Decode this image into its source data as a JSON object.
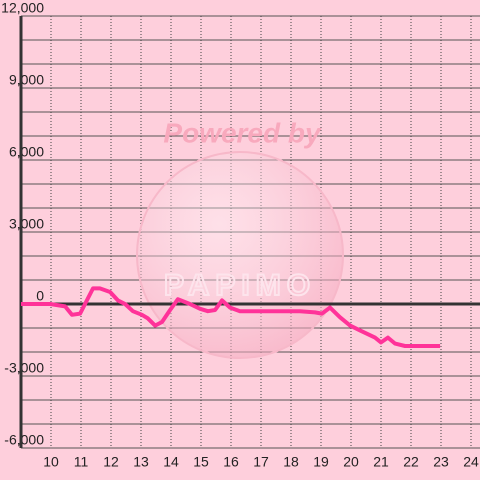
{
  "chart_data": {
    "type": "line",
    "watermark": [
      "Powered by",
      "PAPIMO"
    ],
    "x": [
      9,
      9.97,
      10.47,
      10.7,
      10.97,
      11.4,
      11.63,
      11.97,
      12.23,
      12.47,
      12.73,
      13.03,
      13.23,
      13.47,
      13.7,
      13.97,
      14.23,
      14.63,
      14.97,
      15.23,
      15.47,
      15.7,
      15.97,
      16.3,
      18.3,
      18.8,
      19.03,
      19.3,
      19.63,
      19.97,
      20.3,
      20.8,
      21.0,
      21.23,
      21.47,
      21.8,
      22.97
    ],
    "series": [
      {
        "color": "#ff3399",
        "values": [
          0,
          0,
          -100,
          -450,
          -400,
          650,
          650,
          500,
          150,
          0,
          -300,
          -450,
          -600,
          -900,
          -750,
          -250,
          200,
          0,
          -200,
          -300,
          -250,
          150,
          -150,
          -300,
          -300,
          -350,
          -400,
          -150,
          -550,
          -900,
          -1100,
          -1400,
          -1600,
          -1400,
          -1650,
          -1750,
          -1750
        ]
      }
    ],
    "xlim": [
      9,
      24.3
    ],
    "xticks": [
      10,
      11,
      12,
      13,
      14,
      15,
      16,
      17,
      18,
      19,
      20,
      21,
      22,
      23,
      24
    ],
    "ylim": [
      -6000,
      12000
    ],
    "yticks": [
      {
        "value": -6000,
        "label": "-6,000"
      },
      {
        "value": -3000,
        "label": "-3,000"
      },
      0,
      {
        "value": 3000,
        "label": "3,000"
      },
      {
        "value": 6000,
        "label": "6,000"
      },
      {
        "value": 9000,
        "label": "9,000"
      },
      {
        "value": 12000,
        "label": "12,000"
      }
    ],
    "y_minor_ticks": [
      -5000,
      -4000,
      -2000,
      -1000,
      1000,
      2000,
      4000,
      5000,
      7000,
      8000,
      10000,
      11000
    ],
    "grid": true
  }
}
